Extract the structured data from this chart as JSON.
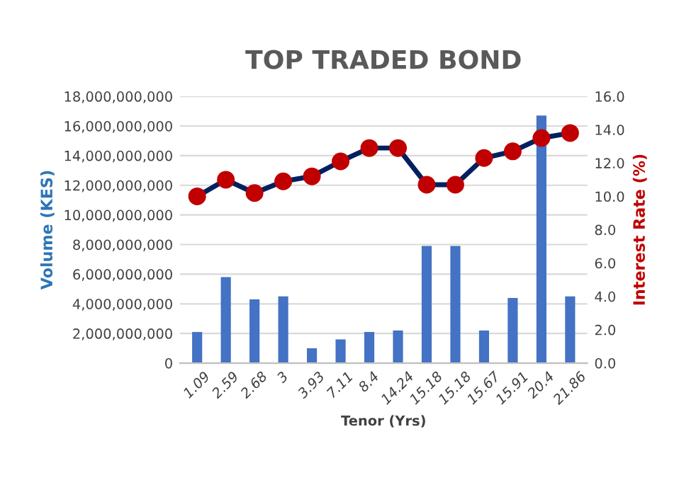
{
  "chart_data": {
    "type": "bar",
    "title": "TOP TRADED BOND",
    "xlabel": "Tenor (Yrs)",
    "ylabel": "Volume (KES)",
    "y2label": "Interest Rate (%)",
    "categories": [
      "1.09",
      "2.59",
      "2.68",
      "3",
      "3.93",
      "7.11",
      "8.4",
      "14.24",
      "15.18",
      "15.18",
      "15.67",
      "15.91",
      "20.4",
      "21.86"
    ],
    "series": [
      {
        "color": "#4472c4",
        "values": [
          2100000000,
          5800000000,
          4300000000,
          4500000000,
          1000000000,
          1600000000,
          2100000000,
          2200000000,
          7900000000,
          7900000000,
          2200000000,
          4400000000,
          16700000000,
          4500000000
        ]
      },
      {
        "type": "line",
        "axis": "y2",
        "color": "#002060",
        "marker": "circle",
        "values": [
          10.0,
          11.0,
          10.2,
          10.9,
          11.2,
          12.1,
          12.9,
          12.9,
          10.7,
          10.7,
          12.3,
          12.7,
          13.5,
          13.8
        ]
      }
    ],
    "ylim": [
      0,
      18000000000
    ],
    "yticks": [
      {
        "value": 0,
        "label": "0"
      },
      {
        "value": 2000000000,
        "label": "2,000,000,000"
      },
      {
        "value": 4000000000,
        "label": "4,000,000,000"
      },
      {
        "value": 6000000000,
        "label": "6,000,000,000"
      },
      {
        "value": 8000000000,
        "label": "8,000,000,000"
      },
      {
        "value": 10000000000,
        "label": "10,000,000,000"
      },
      {
        "value": 12000000000,
        "label": "12,000,000,000"
      },
      {
        "value": 14000000000,
        "label": "14,000,000,000"
      },
      {
        "value": 16000000000,
        "label": "16,000,000,000"
      },
      {
        "value": 18000000000,
        "label": "18,000,000,000"
      }
    ],
    "y2lim": [
      0,
      16
    ],
    "y2ticks": [
      {
        "value": 0,
        "label": "0.0"
      },
      {
        "value": 2,
        "label": "2.0"
      },
      {
        "value": 4,
        "label": "4.0"
      },
      {
        "value": 6,
        "label": "6.0"
      },
      {
        "value": 8,
        "label": "8.0"
      },
      {
        "value": 10,
        "label": "10.0"
      },
      {
        "value": 12,
        "label": "12.0"
      },
      {
        "value": 14,
        "label": "14.0"
      },
      {
        "value": 16,
        "label": "16.0"
      }
    ],
    "grid": "y",
    "legend": false
  }
}
